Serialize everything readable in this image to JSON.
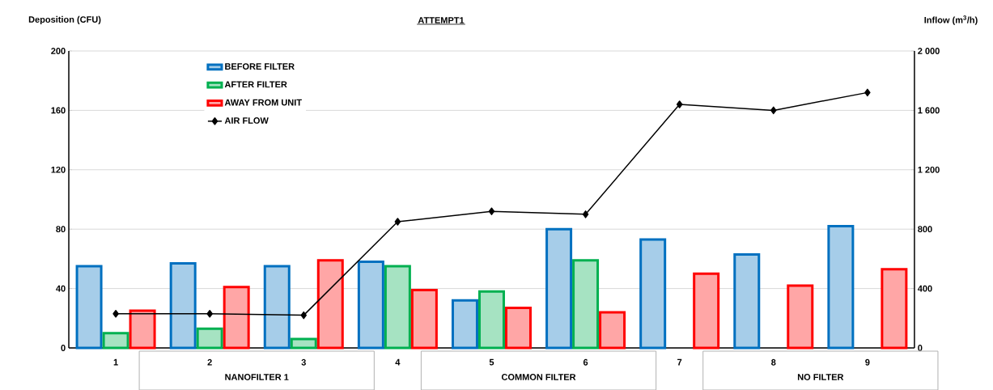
{
  "chart_data": {
    "type": "bar",
    "title": "ATTEMPT1",
    "ylabel": "Deposition (CFU)",
    "y2label": "Inflow (m$^{3}$/h)",
    "categories": [
      "1",
      "2",
      "3",
      "4",
      "5",
      "6",
      "7",
      "8",
      "9"
    ],
    "series": [
      {
        "name": "BEFORE FILTER",
        "color": "#0070c0",
        "values": [
          55,
          57,
          55,
          58,
          32,
          80,
          73,
          63,
          82
        ]
      },
      {
        "name": "AFTER FILTER",
        "color": "#00b050",
        "values": [
          10,
          13,
          6,
          55,
          38,
          59,
          null,
          null,
          null
        ]
      },
      {
        "name": "AWAY FROM UNIT",
        "color": "#ff0000",
        "values": [
          25,
          41,
          59,
          39,
          27,
          24,
          50,
          42,
          53
        ]
      },
      {
        "name": "AIR FLOW",
        "type": "line",
        "axis": "y2",
        "color": "#000000",
        "marker": "diamond",
        "values": [
          230,
          230,
          220,
          850,
          920,
          900,
          1640,
          1600,
          1720
        ]
      }
    ],
    "ylim": [
      0,
      200
    ],
    "yticks": [
      0,
      40,
      80,
      120,
      160,
      200
    ],
    "y2lim": [
      0,
      2000
    ],
    "y2ticks": [
      {
        "value": 0,
        "label": "0"
      },
      {
        "value": 400,
        "label": "400"
      },
      {
        "value": 800,
        "label": "800"
      },
      {
        "value": 1200,
        "label": "1 200"
      },
      {
        "value": 1600,
        "label": "1 600"
      },
      {
        "value": 2000,
        "label": "2 000"
      }
    ],
    "grid": "y",
    "legend": "top left",
    "annotations": [
      "NANOFILTER 1",
      "COMMON FILTER",
      "NO FILTER"
    ]
  }
}
